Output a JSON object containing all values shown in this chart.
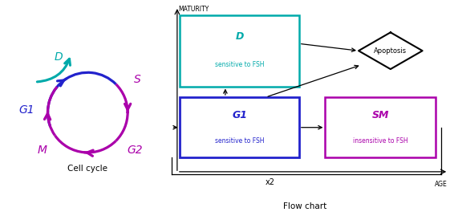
{
  "teal_color": "#00AAAA",
  "purple_color": "#AA00AA",
  "blue_color": "#2222CC",
  "dark_color": "#222222",
  "left_panel_caption": "Cell cycle",
  "right_panel_caption": "Flow chart",
  "maturity_label": "MATURITY",
  "age_label": "AGE",
  "x2_label": "x2",
  "diamond_label": "Apoptosis",
  "box_D_line1": "D",
  "box_D_line2": "sensitive to FSH",
  "box_G1_line1": "G1",
  "box_G1_line2": "sensitive to FSH",
  "box_SM_line1": "SM",
  "box_SM_line2": "insensitive to FSH"
}
